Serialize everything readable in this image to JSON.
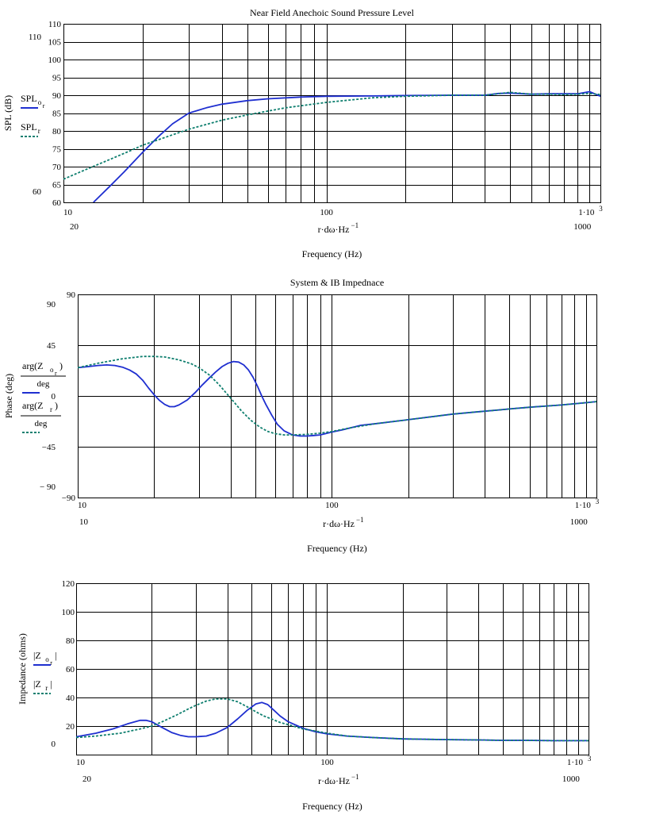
{
  "colors": {
    "series_solid": "#1f2fd0",
    "series_dashed": "#0f7f6f",
    "grid": "#000000"
  },
  "chart_data": [
    {
      "type": "line",
      "title": "Near Field Anechoic Sound Pressure Level",
      "xlabel_top": "r·dω·Hz",
      "xlabel_exp": "−1",
      "xlabel": "Frequency (Hz)",
      "ylabel": "SPL (dB)",
      "xscale": "log",
      "xlim": [
        10,
        1100
      ],
      "ylim": [
        60,
        110
      ],
      "grid": true,
      "x_tick_labels": [
        "10",
        "100",
        "1·10"
      ],
      "x_tick_exp": "3",
      "x_extra_labels": [
        "20",
        "1000"
      ],
      "y_tick_labels": [
        "60",
        "65",
        "70",
        "75",
        "80",
        "85",
        "90",
        "95",
        "100",
        "105",
        "110"
      ],
      "y_outer_labels": [
        "110",
        "60"
      ],
      "legend": {
        "placement": "left",
        "entries": [
          {
            "main": "SPL",
            "sub": "o",
            "subsub": "r",
            "style": "solid"
          },
          {
            "main": "SPL",
            "sub": "r",
            "subsub": "",
            "style": "dashed"
          }
        ]
      },
      "series": [
        {
          "style": "solid",
          "x": [
            13,
            15,
            17,
            20,
            23,
            26,
            30,
            35,
            40,
            50,
            60,
            80,
            100,
            150,
            200,
            300,
            400,
            450,
            500,
            600,
            700,
            800,
            900,
            1000,
            1100
          ],
          "y": [
            60,
            64.5,
            68.5,
            74,
            78.5,
            82,
            85,
            86.5,
            87.5,
            88.5,
            89,
            89.5,
            89.7,
            89.8,
            89.9,
            90,
            90,
            90.5,
            90.6,
            90.3,
            90.4,
            90.4,
            90.4,
            91,
            89.7
          ]
        },
        {
          "style": "dashed",
          "x": [
            10,
            12,
            15,
            18,
            20,
            25,
            30,
            40,
            50,
            70,
            100,
            150,
            200,
            300,
            400,
            500,
            600,
            700,
            800,
            900,
            1000,
            1100
          ],
          "y": [
            66.5,
            69,
            72,
            74.5,
            76,
            78.5,
            80.5,
            83,
            84.5,
            86.5,
            88,
            89.3,
            89.7,
            90,
            90,
            90.8,
            90.3,
            90.3,
            90.2,
            90.3,
            90.5,
            90.2
          ]
        }
      ]
    },
    {
      "type": "line",
      "title": "System & IB Impednace",
      "xlabel_top": "r·dω·Hz",
      "xlabel_exp": "−1",
      "xlabel": "Frequency (Hz)",
      "ylabel": "Phase (deg)",
      "xscale": "log",
      "xlim": [
        10,
        1100
      ],
      "ylim": [
        -90,
        90
      ],
      "grid": true,
      "x_tick_labels": [
        "10",
        "100",
        "1·10"
      ],
      "x_tick_exp": "3",
      "x_extra_labels": [
        "10",
        "1000"
      ],
      "y_tick_labels": [
        "−90",
        "90"
      ],
      "y_outer_labels": [
        "90",
        "45",
        "0",
        "−45",
        "− 90"
      ],
      "legend": {
        "placement": "left",
        "entries": [
          {
            "main": "arg(Z",
            "sub": "o",
            "subsub": "r",
            "close": ")",
            "den": "deg",
            "style": "solid"
          },
          {
            "main": "arg(Z",
            "sub": "r",
            "subsub": "",
            "close": ")",
            "den": "deg",
            "style": "dashed"
          }
        ]
      },
      "series": [
        {
          "style": "solid",
          "x": [
            10,
            11,
            12,
            13,
            14,
            15,
            16,
            17,
            18,
            19,
            20,
            21,
            22,
            23,
            24,
            25,
            27,
            29,
            31,
            33,
            35,
            37,
            39,
            41,
            43,
            45,
            47,
            49,
            51,
            53,
            55,
            58,
            61,
            65,
            70,
            75,
            80,
            85,
            90,
            100,
            110,
            120,
            130,
            150,
            200,
            300,
            400,
            500,
            600,
            800,
            1000,
            1100
          ],
          "y": [
            25,
            26,
            27,
            27.5,
            27,
            25.5,
            23,
            19.5,
            14,
            7,
            1,
            -4,
            -7.5,
            -9.5,
            -9.5,
            -8,
            -3.5,
            3,
            10,
            16,
            21.5,
            26,
            29,
            30.5,
            30,
            27.5,
            23,
            16.5,
            8.5,
            0,
            -7.5,
            -17,
            -25,
            -31,
            -34.5,
            -35.5,
            -35.5,
            -35,
            -34.5,
            -32,
            -30,
            -28,
            -26,
            -24.5,
            -21,
            -16,
            -13.5,
            -11.5,
            -10,
            -8,
            -6,
            -5
          ]
        },
        {
          "style": "dashed",
          "x": [
            10,
            12,
            15,
            18,
            20,
            22,
            25,
            28,
            30,
            33,
            36,
            40,
            44,
            48,
            52,
            56,
            60,
            65,
            70,
            80,
            90,
            100,
            120,
            150,
            200,
            300,
            400,
            500,
            600,
            800,
            1000,
            1100
          ],
          "y": [
            25,
            29,
            33,
            35,
            35,
            34.5,
            32,
            28.5,
            25,
            18.5,
            10,
            -2,
            -13,
            -21.5,
            -27.5,
            -31.5,
            -33.5,
            -34.5,
            -34.5,
            -34,
            -33,
            -31.5,
            -28,
            -24.5,
            -21,
            -16,
            -13.5,
            -11.5,
            -10,
            -8,
            -6,
            -5
          ]
        }
      ]
    },
    {
      "type": "line",
      "title": "",
      "xlabel_top": "r·dω·Hz",
      "xlabel_exp": "−1",
      "xlabel": "Frequency (Hz)",
      "ylabel": "Impedance (ohms)",
      "xscale": "log",
      "xlim": [
        10,
        1100
      ],
      "ylim": [
        0,
        120
      ],
      "grid": true,
      "x_tick_labels": [
        "10",
        "100",
        "1·10"
      ],
      "x_tick_exp": "3",
      "x_extra_labels": [
        "20",
        "1000"
      ],
      "y_tick_labels": [
        "20",
        "40",
        "60",
        "80",
        "100",
        "120"
      ],
      "y_outer_labels": [
        "0"
      ],
      "legend": {
        "placement": "left",
        "entries": [
          {
            "main": "|Z",
            "sub": "o",
            "subsub": "r",
            "close": "|",
            "style": "solid"
          },
          {
            "main": "|Z",
            "sub": "r",
            "subsub": "",
            "close": "|",
            "style": "dashed"
          }
        ]
      },
      "series": [
        {
          "style": "solid",
          "x": [
            10,
            12,
            14,
            16,
            18,
            19,
            20,
            22,
            24,
            26,
            28,
            30,
            33,
            36,
            40,
            44,
            48,
            52,
            55,
            58,
            61,
            65,
            70,
            80,
            90,
            100,
            120,
            150,
            200,
            300,
            400,
            500,
            600,
            800,
            1000,
            1100
          ],
          "y": [
            12.5,
            15,
            18,
            21.5,
            24,
            24,
            23,
            19,
            15.5,
            13.5,
            12.5,
            12.5,
            13,
            15,
            19,
            25,
            31,
            35.5,
            36.5,
            35,
            31.5,
            27,
            23,
            18.5,
            16,
            14.5,
            13,
            12,
            11,
            10.5,
            10.3,
            10,
            10,
            9.8,
            9.8,
            9.8
          ]
        },
        {
          "style": "dashed",
          "x": [
            10,
            12,
            15,
            18,
            20,
            22,
            25,
            28,
            30,
            33,
            36,
            40,
            44,
            48,
            52,
            56,
            60,
            65,
            70,
            80,
            90,
            100,
            120,
            150,
            200,
            300,
            400,
            500,
            600,
            800,
            1000,
            1100
          ],
          "y": [
            12,
            13,
            15,
            18,
            20,
            23,
            27.5,
            32,
            34.5,
            37.5,
            39,
            39,
            37,
            33.5,
            30,
            27,
            25,
            22.5,
            21,
            18,
            16.5,
            15,
            13,
            12,
            11,
            10.5,
            10.3,
            10,
            10,
            9.8,
            9.8,
            9.8
          ]
        }
      ]
    }
  ]
}
